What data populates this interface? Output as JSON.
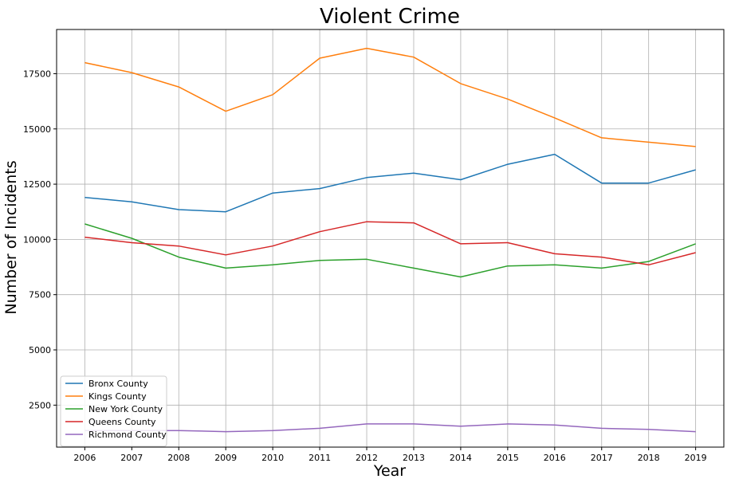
{
  "chart_data": {
    "type": "line",
    "title": "Violent Crime",
    "xlabel": "Year",
    "ylabel": "Number of Incidents",
    "x": [
      2006,
      2007,
      2008,
      2009,
      2010,
      2011,
      2012,
      2013,
      2014,
      2015,
      2016,
      2017,
      2018,
      2019
    ],
    "xlim": [
      2005.4,
      2019.6
    ],
    "ylim": [
      600,
      19500
    ],
    "yticks": [
      2500,
      5000,
      7500,
      10000,
      12500,
      15000,
      17500
    ],
    "grid": true,
    "legend_position": "lower-left",
    "series": [
      {
        "name": "Bronx County",
        "color": "#1f77b4",
        "values": [
          11900,
          11700,
          11350,
          11250,
          12100,
          12300,
          12800,
          13000,
          12700,
          13400,
          13850,
          12550,
          12550,
          13150
        ]
      },
      {
        "name": "Kings County",
        "color": "#ff7f0e",
        "values": [
          18000,
          17550,
          16900,
          15800,
          16550,
          18200,
          18650,
          18250,
          17050,
          16350,
          15500,
          14600,
          14400,
          14200
        ]
      },
      {
        "name": "New York County",
        "color": "#2ca02c",
        "values": [
          10700,
          10050,
          9200,
          8700,
          8850,
          9050,
          9100,
          8700,
          8300,
          8800,
          8850,
          8700,
          9000,
          9800
        ]
      },
      {
        "name": "Queens County",
        "color": "#d62728",
        "values": [
          10100,
          9850,
          9700,
          9300,
          9700,
          10350,
          10800,
          10750,
          9800,
          9850,
          9350,
          9200,
          8850,
          9400
        ]
      },
      {
        "name": "Richmond County",
        "color": "#9467bd",
        "values": [
          1350,
          1350,
          1350,
          1300,
          1350,
          1450,
          1650,
          1650,
          1550,
          1650,
          1600,
          1450,
          1400,
          1300
        ]
      }
    ]
  }
}
